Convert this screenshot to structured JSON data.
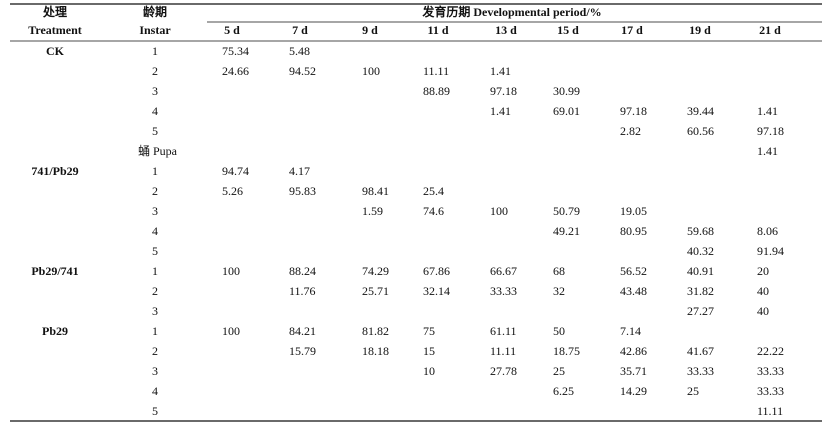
{
  "table": {
    "header": {
      "treatment_cn": "处理",
      "treatment_en": "Treatment",
      "instar_cn": "龄期",
      "instar_en": "Instar",
      "period": "发育历期 Developmental period/%",
      "columns": [
        "5 d",
        "7 d",
        "9 d",
        "11 d",
        "13 d",
        "15 d",
        "17 d",
        "19 d",
        "21 d"
      ]
    },
    "groups": [
      {
        "treatment": "CK",
        "rows": [
          {
            "instar": "1",
            "cells": [
              "75.34",
              "5.48",
              null,
              null,
              null,
              null,
              null,
              null,
              null
            ]
          },
          {
            "instar": "2",
            "cells": [
              "24.66",
              "94.52",
              "100",
              "11.11",
              "1.41",
              null,
              null,
              null,
              null
            ]
          },
          {
            "instar": "3",
            "cells": [
              null,
              null,
              null,
              "88.89",
              "97.18",
              "30.99",
              null,
              null,
              null
            ]
          },
          {
            "instar": "4",
            "cells": [
              null,
              null,
              null,
              null,
              "1.41",
              "69.01",
              "97.18",
              "39.44",
              "1.41"
            ]
          },
          {
            "instar": "5",
            "cells": [
              null,
              null,
              null,
              null,
              null,
              null,
              "2.82",
              "60.56",
              "97.18"
            ]
          },
          {
            "instar": "蛹 Pupa",
            "cells": [
              null,
              null,
              null,
              null,
              null,
              null,
              null,
              null,
              "1.41"
            ]
          }
        ]
      },
      {
        "treatment": "741/Pb29",
        "rows": [
          {
            "instar": "1",
            "cells": [
              "94.74",
              "4.17",
              null,
              null,
              null,
              null,
              null,
              null,
              null
            ]
          },
          {
            "instar": "2",
            "cells": [
              "5.26",
              "95.83",
              "98.41",
              "25.4",
              null,
              null,
              null,
              null,
              null
            ]
          },
          {
            "instar": "3",
            "cells": [
              null,
              null,
              "1.59",
              "74.6",
              "100",
              "50.79",
              "19.05",
              null,
              null
            ]
          },
          {
            "instar": "4",
            "cells": [
              null,
              null,
              null,
              null,
              null,
              "49.21",
              "80.95",
              "59.68",
              "8.06"
            ]
          },
          {
            "instar": "5",
            "cells": [
              null,
              null,
              null,
              null,
              null,
              null,
              null,
              "40.32",
              "91.94"
            ]
          }
        ]
      },
      {
        "treatment": "Pb29/741",
        "rows": [
          {
            "instar": "1",
            "cells": [
              "100",
              "88.24",
              "74.29",
              "67.86",
              "66.67",
              "68",
              "56.52",
              "40.91",
              "20"
            ]
          },
          {
            "instar": "2",
            "cells": [
              null,
              "11.76",
              "25.71",
              "32.14",
              "33.33",
              "32",
              "43.48",
              "31.82",
              "40"
            ]
          },
          {
            "instar": "3",
            "cells": [
              null,
              null,
              null,
              null,
              null,
              null,
              null,
              "27.27",
              "40"
            ]
          }
        ]
      },
      {
        "treatment": "Pb29",
        "rows": [
          {
            "instar": "1",
            "cells": [
              "100",
              "84.21",
              "81.82",
              "75",
              "61.11",
              "50",
              "7.14",
              null,
              null
            ]
          },
          {
            "instar": "2",
            "cells": [
              null,
              "15.79",
              "18.18",
              "15",
              "11.11",
              "18.75",
              "42.86",
              "41.67",
              "22.22"
            ]
          },
          {
            "instar": "3",
            "cells": [
              null,
              null,
              null,
              "10",
              "27.78",
              "25",
              "35.71",
              "33.33",
              "33.33"
            ]
          },
          {
            "instar": "4",
            "cells": [
              null,
              null,
              null,
              null,
              null,
              "6.25",
              "14.29",
              "25",
              "33.33"
            ]
          },
          {
            "instar": "5",
            "cells": [
              null,
              null,
              null,
              null,
              null,
              null,
              null,
              null,
              "11.11"
            ]
          }
        ]
      }
    ]
  }
}
